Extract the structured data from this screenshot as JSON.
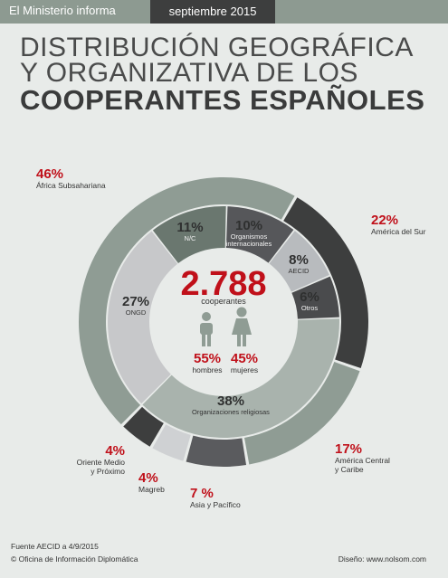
{
  "header": {
    "publication": "El Ministerio informa",
    "date": "septiembre 2015"
  },
  "title": {
    "line1": "DISTRIBUCIÓN GEOGRÁFICA",
    "line2": "Y ORGANIZATIVA DE LOS",
    "line3": "COOPERANTES ESPAÑOLES"
  },
  "colors": {
    "accent_red": "#c0101a",
    "outer_ring_main": "#8f9c94",
    "dark": "#3d3e3e",
    "light": "#cfd1d3"
  },
  "chart_data": [
    {
      "type": "pie",
      "name": "geografica",
      "unit": "%",
      "slices": [
        {
          "label": "África Subsahariana",
          "value": 46,
          "value_label": "46%",
          "color": "#8f9c94"
        },
        {
          "label": "América del Sur",
          "value": 22,
          "value_label": "22%",
          "color": "#3d3e3e"
        },
        {
          "label": "América Central y Caribe",
          "value": 17,
          "value_label": "17%",
          "color": "#8f9c94"
        },
        {
          "label": "Asia y Pacífico",
          "value": 7,
          "value_label": "7 %",
          "color": "#5a5b5e"
        },
        {
          "label": "Magreb",
          "value": 4,
          "value_label": "4%",
          "color": "#cfd1d3"
        },
        {
          "label": "Oriente Medio y Próximo",
          "value": 4,
          "value_label": "4%",
          "color": "#3d3e3e"
        }
      ]
    },
    {
      "type": "pie",
      "name": "organizativa",
      "unit": "%",
      "slices": [
        {
          "label": "N/C",
          "value": 11,
          "value_label": "11%",
          "color": "#6a776f"
        },
        {
          "label": "Organismos internacionales",
          "value": 10,
          "value_label": "10%",
          "color": "#56575a"
        },
        {
          "label": "AECID",
          "value": 8,
          "value_label": "8%",
          "color": "#b8bbbe"
        },
        {
          "label": "Otros",
          "value": 6,
          "value_label": "6%",
          "color": "#4a4b4d"
        },
        {
          "label": "Organizaciones religiosas",
          "value": 38,
          "value_label": "38%",
          "color": "#a9b3ad"
        },
        {
          "label": "ONGD",
          "value": 27,
          "value_label": "27%",
          "color": "#c7c8ca"
        }
      ]
    }
  ],
  "center": {
    "total": "2.788",
    "total_label": "cooperantes",
    "men_pct": "55%",
    "men_label": "hombres",
    "women_pct": "45%",
    "women_label": "mujeres"
  },
  "footer": {
    "source": "Fuente AECID a 4/9/2015",
    "copyright": "© Oficina de Información Diplomática",
    "design": "Diseño: www.nolsom.com"
  }
}
